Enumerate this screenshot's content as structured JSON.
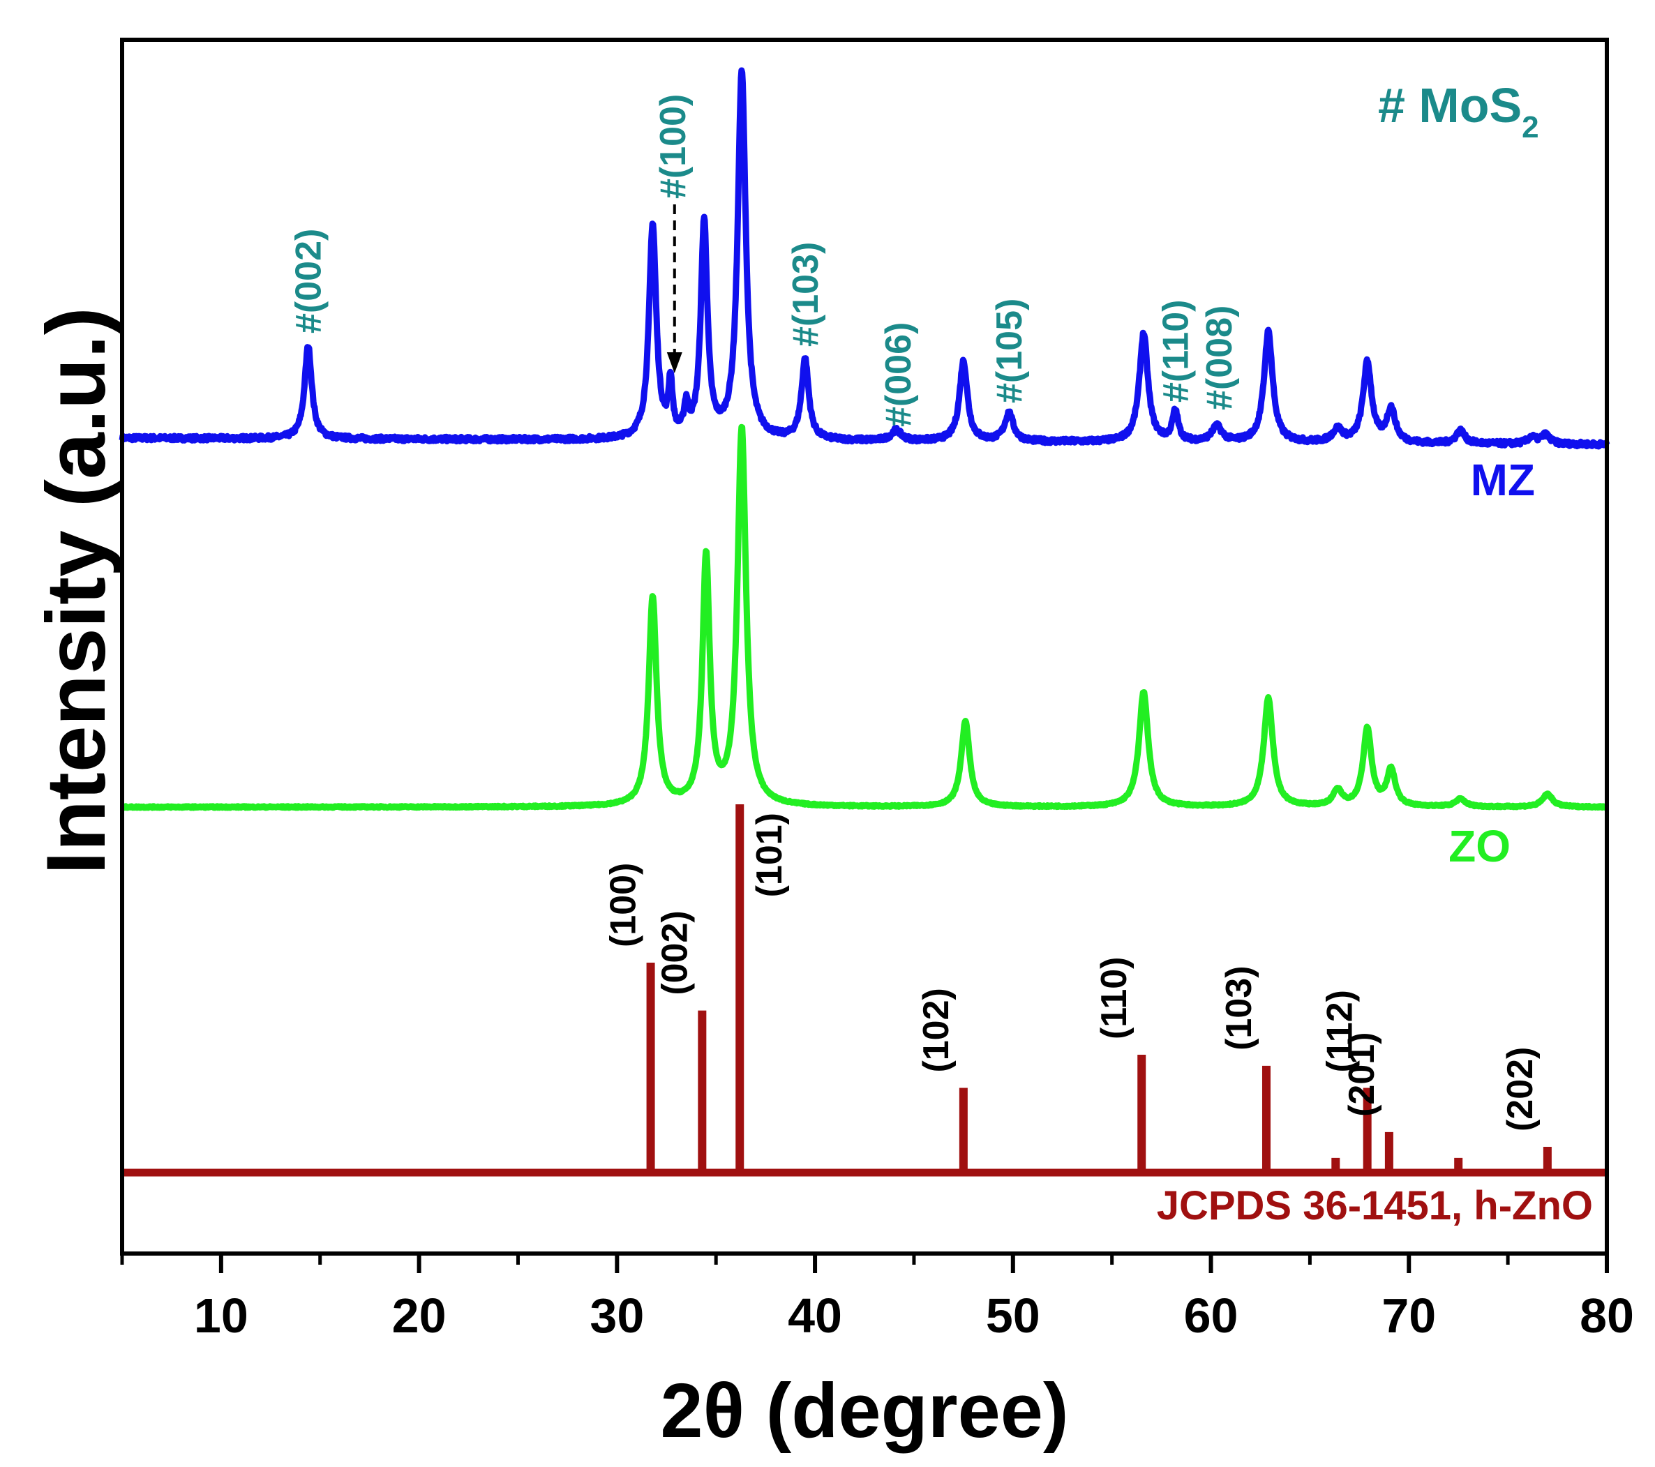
{
  "chart_data": {
    "type": "line",
    "xlabel": "2θ (degree)",
    "ylabel": "Intensity (a.u.)",
    "xlim": [
      5,
      80
    ],
    "x_ticks": [
      10,
      20,
      30,
      40,
      50,
      60,
      70,
      80
    ],
    "x_minor_ticks": [
      5,
      15,
      25,
      35,
      45,
      55,
      65,
      75
    ],
    "y_ticks_shown": false,
    "legend_text": {
      "prefix": "# MoS",
      "subscript": "2"
    },
    "series": [
      {
        "name": "MZ",
        "color": "#1010ee",
        "baseline": 0.1,
        "peaks": [
          {
            "x": 14.4,
            "h": 0.72,
            "w": 0.22
          },
          {
            "x": 31.8,
            "h": 1.66,
            "w": 0.22
          },
          {
            "x": 32.7,
            "h": 0.41,
            "w": 0.12
          },
          {
            "x": 33.5,
            "h": 0.22,
            "w": 0.13
          },
          {
            "x": 34.4,
            "h": 1.67,
            "w": 0.2
          },
          {
            "x": 36.3,
            "h": 2.85,
            "w": 0.24
          },
          {
            "x": 39.5,
            "h": 0.62,
            "w": 0.22
          },
          {
            "x": 44.1,
            "h": 0.08,
            "w": 0.3
          },
          {
            "x": 47.5,
            "h": 0.62,
            "w": 0.24
          },
          {
            "x": 49.8,
            "h": 0.22,
            "w": 0.26
          },
          {
            "x": 56.6,
            "h": 0.84,
            "w": 0.26
          },
          {
            "x": 58.2,
            "h": 0.23,
            "w": 0.18
          },
          {
            "x": 60.3,
            "h": 0.12,
            "w": 0.3
          },
          {
            "x": 62.9,
            "h": 0.86,
            "w": 0.26
          },
          {
            "x": 66.4,
            "h": 0.1,
            "w": 0.3
          },
          {
            "x": 67.9,
            "h": 0.62,
            "w": 0.26
          },
          {
            "x": 69.1,
            "h": 0.26,
            "w": 0.26
          },
          {
            "x": 72.6,
            "h": 0.1,
            "w": 0.26
          },
          {
            "x": 76.2,
            "h": 0.05,
            "w": 0.26
          },
          {
            "x": 76.9,
            "h": 0.07,
            "w": 0.26
          }
        ]
      },
      {
        "name": "ZO",
        "color": "#22ee22",
        "baseline": 0,
        "peaks": [
          {
            "x": 31.8,
            "h": 1.62,
            "w": 0.24
          },
          {
            "x": 34.5,
            "h": 1.92,
            "w": 0.22
          },
          {
            "x": 36.3,
            "h": 2.92,
            "w": 0.26
          },
          {
            "x": 47.6,
            "h": 0.66,
            "w": 0.26
          },
          {
            "x": 56.6,
            "h": 0.89,
            "w": 0.28
          },
          {
            "x": 62.9,
            "h": 0.84,
            "w": 0.28
          },
          {
            "x": 66.4,
            "h": 0.12,
            "w": 0.28
          },
          {
            "x": 67.9,
            "h": 0.6,
            "w": 0.26
          },
          {
            "x": 69.1,
            "h": 0.28,
            "w": 0.26
          },
          {
            "x": 72.6,
            "h": 0.06,
            "w": 0.3
          },
          {
            "x": 77.0,
            "h": 0.1,
            "w": 0.3
          }
        ]
      }
    ],
    "reference": {
      "name": "JCPDS 36-1451, h-ZnO",
      "color": "#a01010",
      "lines": [
        {
          "x": 31.7,
          "intensity": 57,
          "label": "(100)"
        },
        {
          "x": 34.3,
          "intensity": 44,
          "label": "(002)"
        },
        {
          "x": 36.2,
          "intensity": 100,
          "label": "(101)"
        },
        {
          "x": 47.5,
          "intensity": 23,
          "label": "(102)"
        },
        {
          "x": 56.5,
          "intensity": 32,
          "label": "(110)"
        },
        {
          "x": 62.8,
          "intensity": 29,
          "label": "(103)"
        },
        {
          "x": 66.3,
          "intensity": 4,
          "label": ""
        },
        {
          "x": 67.9,
          "intensity": 23,
          "label": "(112)"
        },
        {
          "x": 69.0,
          "intensity": 11,
          "label": "(201)"
        },
        {
          "x": 72.5,
          "intensity": 4,
          "label": ""
        },
        {
          "x": 77.0,
          "intensity": 7,
          "label": "(202)"
        }
      ]
    },
    "annotations": [
      {
        "x": 14.4,
        "text": "#(002)"
      },
      {
        "x": 32.8,
        "text": "#(100)",
        "arrow": true
      },
      {
        "x": 39.5,
        "text": "#(103)"
      },
      {
        "x": 44.2,
        "text": "#(006)"
      },
      {
        "x": 49.8,
        "text": "#(105)"
      },
      {
        "x": 58.2,
        "text": "#(110)"
      },
      {
        "x": 60.4,
        "text": "#(008)"
      }
    ]
  }
}
